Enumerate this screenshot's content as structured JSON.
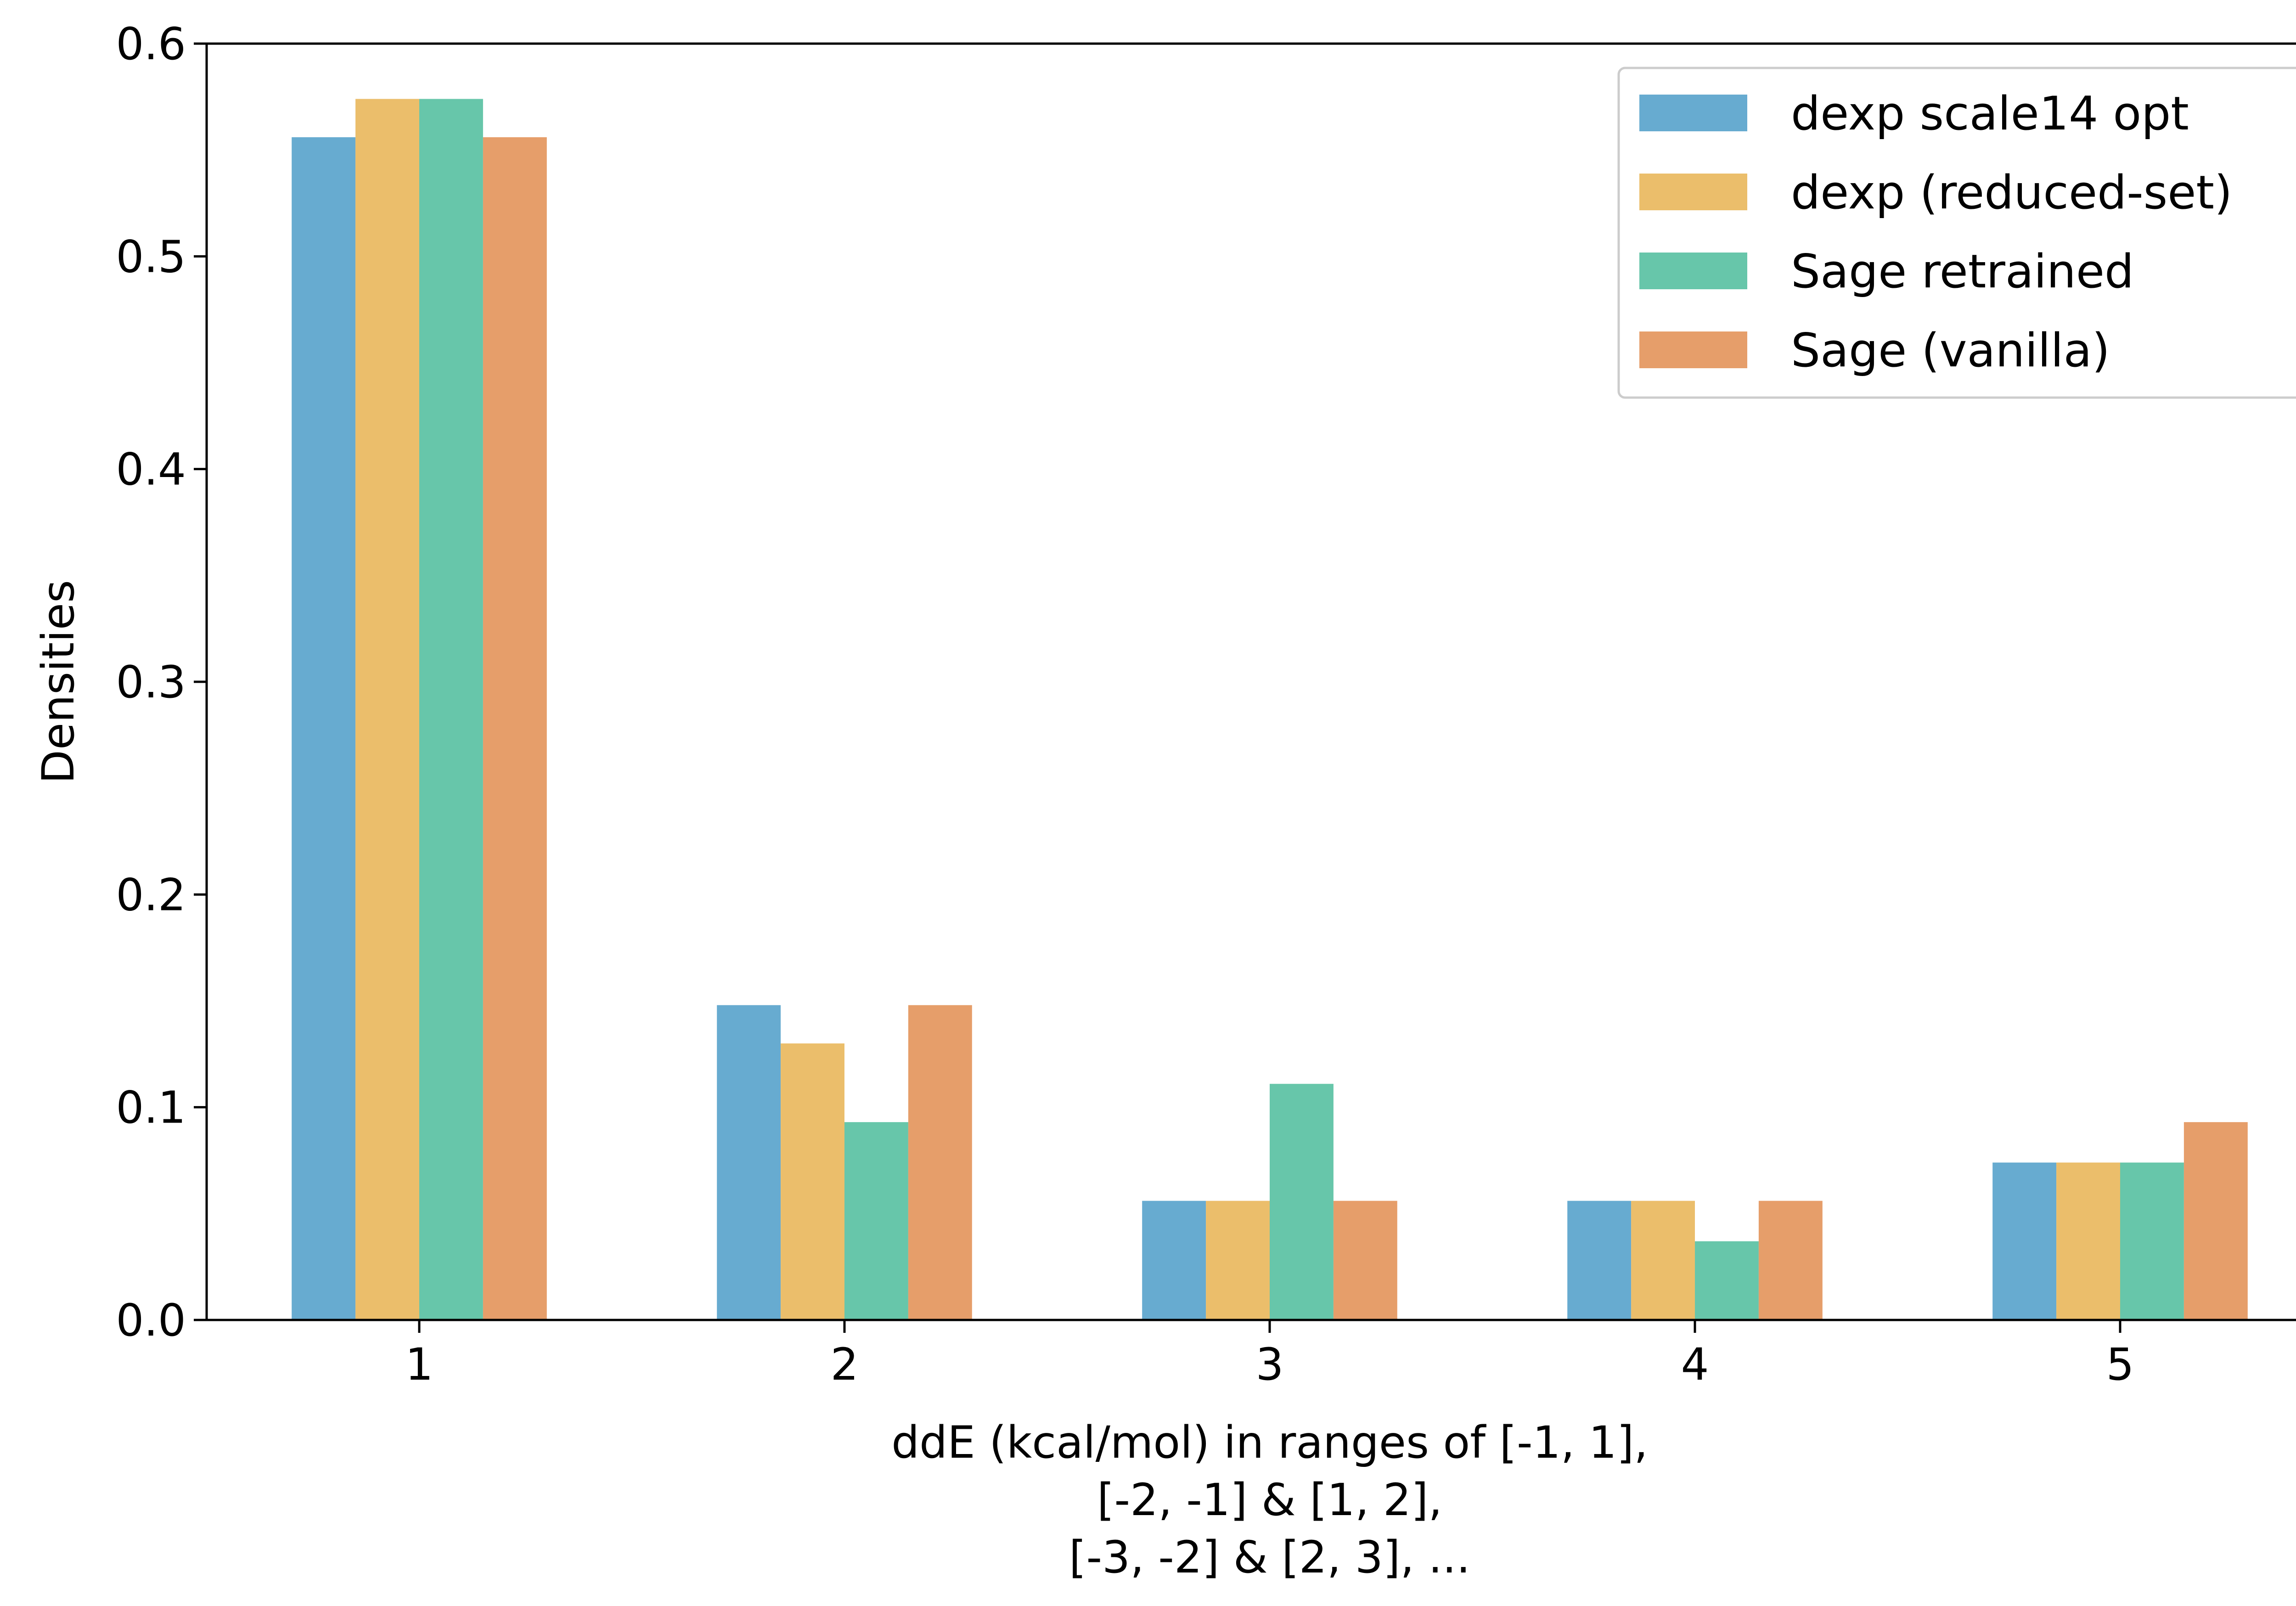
{
  "chart_data": {
    "type": "bar",
    "title": "",
    "xlabel": [
      "ddE (kcal/mol) in ranges of [-1, 1],",
      "[-2, -1] & [1, 2],",
      "[-3, -2] & [2, 3], ..."
    ],
    "ylabel": "Densities",
    "categories": [
      "1",
      "2",
      "3",
      "4",
      "5"
    ],
    "ylim": [
      0,
      0.6
    ],
    "yticks": [
      "0.0",
      "0.1",
      "0.2",
      "0.3",
      "0.4",
      "0.5",
      "0.6"
    ],
    "grid": false,
    "legend_position": "top-right",
    "series": [
      {
        "name": "dexp scale14 opt",
        "color": "#67abd0",
        "values": [
          0.556,
          0.148,
          0.056,
          0.056,
          0.074
        ]
      },
      {
        "name": "dexp (reduced-set)",
        "color": "#ebbe6b",
        "values": [
          0.574,
          0.13,
          0.056,
          0.056,
          0.074
        ]
      },
      {
        "name": "Sage retrained",
        "color": "#67c6aa",
        "values": [
          0.574,
          0.093,
          0.111,
          0.037,
          0.074
        ]
      },
      {
        "name": "Sage (vanilla)",
        "color": "#e69e6a",
        "values": [
          0.556,
          0.148,
          0.056,
          0.056,
          0.093
        ]
      }
    ]
  }
}
